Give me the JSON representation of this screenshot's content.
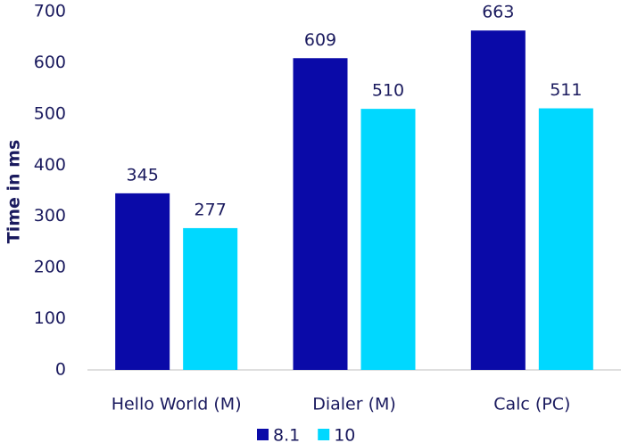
{
  "chart_data": {
    "type": "bar",
    "y_label": "Time in  ms",
    "categories": [
      "Hello World (M)",
      "Dialer (M)",
      "Calc (PC)"
    ],
    "series": [
      {
        "name": "8.1",
        "color": "#0a0aa8",
        "values": [
          345,
          609,
          663
        ]
      },
      {
        "name": "10",
        "color": "#00d8ff",
        "values": [
          277,
          510,
          511
        ]
      }
    ],
    "ylim": [
      0,
      700
    ],
    "yticks": [
      0,
      100,
      200,
      300,
      400,
      500,
      600,
      700
    ],
    "grid": false,
    "legend": "bottom"
  }
}
